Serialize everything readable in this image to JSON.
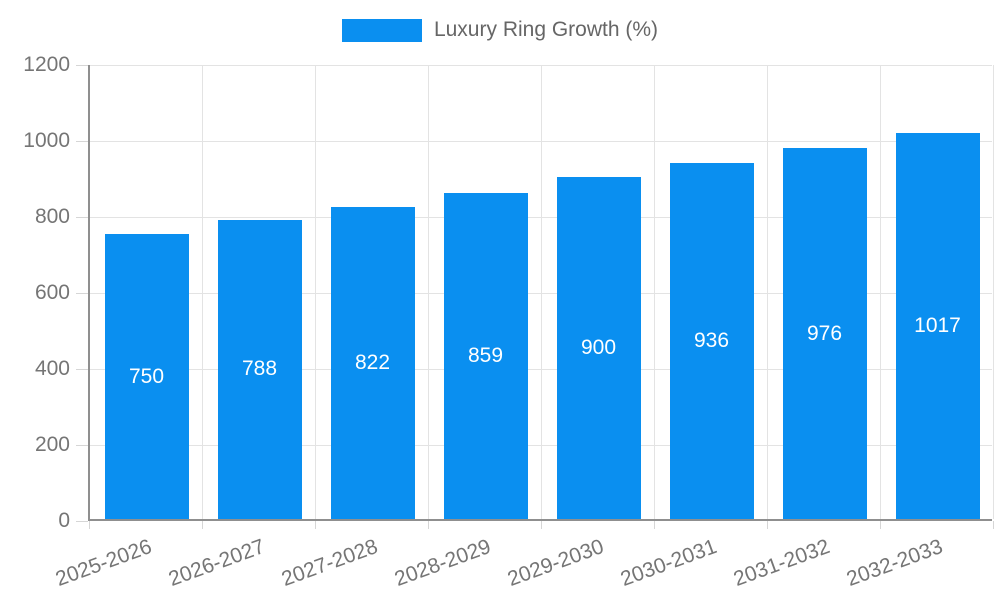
{
  "legend": {
    "label": "Luxury Ring Growth (%)",
    "swatch_color": "#0a8ff0",
    "position": "top"
  },
  "chart_data": {
    "type": "bar",
    "title": "Luxury Ring Growth (%)",
    "series": [
      {
        "name": "Luxury Ring Growth (%)",
        "values": [
          750,
          788,
          822,
          859,
          900,
          936,
          976,
          1017
        ]
      }
    ],
    "categories": [
      "2025-2026",
      "2026-2027",
      "2027-2028",
      "2028-2029",
      "2029-2030",
      "2030-2031",
      "2031-2032",
      "2032-2033"
    ],
    "xlabel": "",
    "ylabel": "",
    "ylim": [
      0,
      1200
    ],
    "yticks": [
      0,
      200,
      400,
      600,
      800,
      1000,
      1200
    ],
    "grid": true,
    "legend_position": "top",
    "bar_color": "#0a8ff0",
    "value_label_color": "#ffffff",
    "axis_label_color": "#757575",
    "gridline_color": "#e3e3e3",
    "value_labels_shown": true,
    "x_label_rotation_deg": -20
  }
}
